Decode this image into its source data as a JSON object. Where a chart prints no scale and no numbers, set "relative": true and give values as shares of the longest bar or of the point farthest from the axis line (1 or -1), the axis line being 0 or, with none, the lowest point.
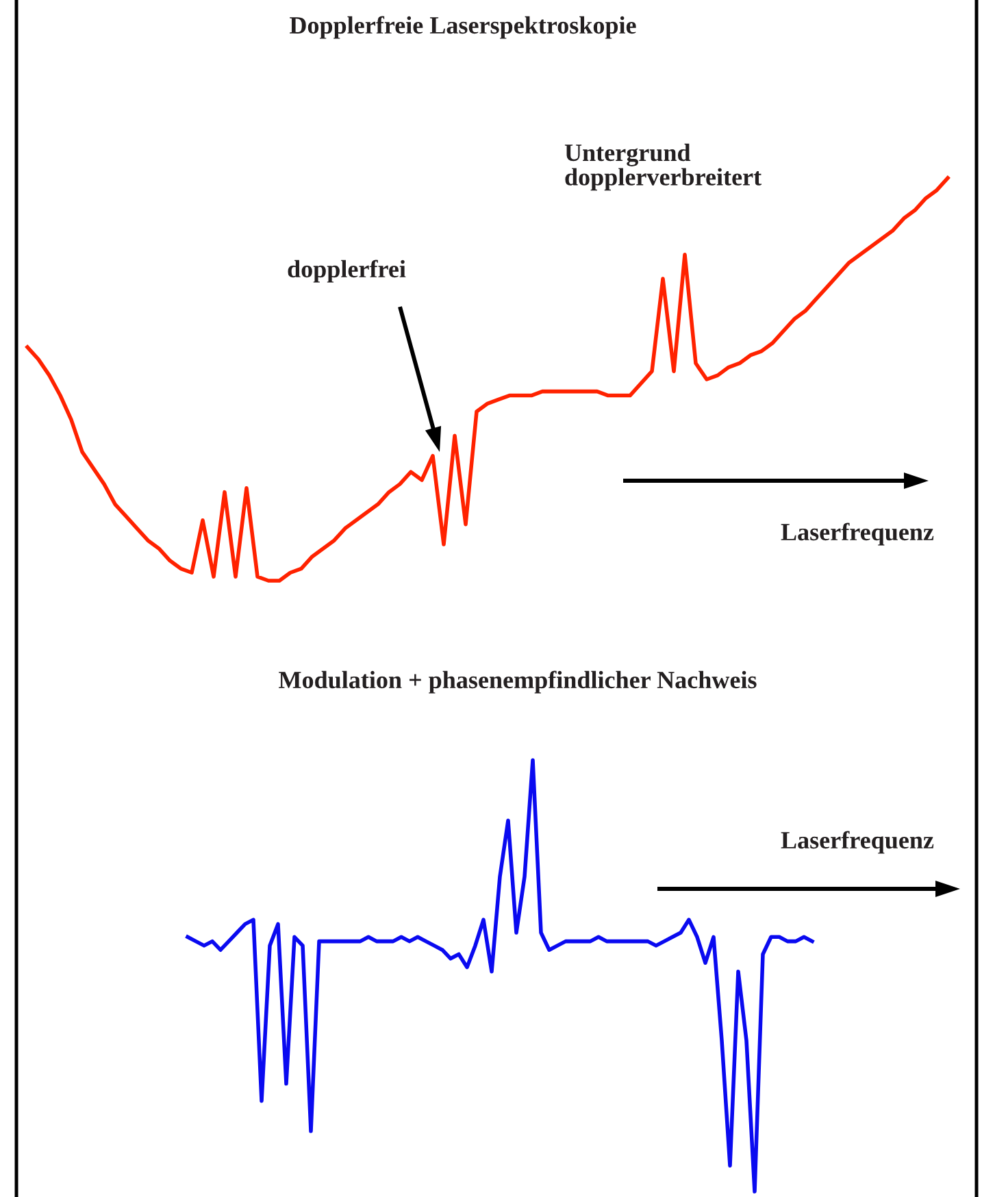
{
  "chart_data": [
    {
      "type": "line",
      "relative": true,
      "title": "Dopplerfreie Laserspektroskopie",
      "annotations": [
        "dopplerfrei",
        "Untergrund\ndopplerverbreitert",
        "Laserfrequenz"
      ],
      "categories": [
        null,
        null,
        null,
        null,
        null,
        null,
        null,
        null,
        null,
        null,
        null,
        null,
        null,
        null,
        null,
        null,
        null,
        null,
        null,
        null,
        null,
        null,
        null,
        null,
        null,
        null,
        null,
        null,
        null,
        null,
        null,
        null,
        null,
        null,
        null,
        null,
        null,
        null,
        null,
        null,
        null,
        null,
        null,
        null,
        null,
        null,
        null,
        null,
        null,
        null,
        null,
        null,
        null,
        null,
        null,
        null,
        null,
        null,
        null,
        null,
        null,
        null,
        null,
        null,
        null,
        null,
        null,
        null,
        null,
        null,
        null,
        null,
        null,
        null,
        null,
        null,
        null,
        null,
        null,
        null,
        null,
        null,
        null,
        null,
        null
      ],
      "series": [
        {
          "color": "#ff2200",
          "values": [
            0.58,
            0.55,
            0.51,
            0.46,
            0.4,
            0.32,
            0.28,
            0.24,
            0.19,
            0.16,
            0.13,
            0.1,
            0.08,
            0.05,
            0.03,
            0.02,
            0.15,
            0.01,
            0.22,
            0.01,
            0.23,
            0.01,
            0,
            0,
            0.02,
            0.03,
            0.06,
            0.08,
            0.1,
            0.13,
            0.15,
            0.17,
            0.19,
            0.22,
            0.24,
            0.27,
            0.25,
            0.31,
            0.09,
            0.36,
            0.14,
            0.42,
            0.44,
            0.45,
            0.46,
            0.46,
            0.46,
            0.47,
            0.47,
            0.47,
            0.47,
            0.47,
            0.47,
            0.46,
            0.46,
            0.46,
            0.49,
            0.52,
            0.75,
            0.52,
            0.81,
            0.54,
            0.5,
            0.51,
            0.53,
            0.54,
            0.56,
            0.57,
            0.59,
            0.62,
            0.65,
            0.67,
            0.7,
            0.73,
            0.76,
            0.79,
            0.81,
            0.83,
            0.85,
            0.87,
            0.9,
            0.92,
            0.95,
            0.97,
            1.0
          ]
        }
      ]
    },
    {
      "type": "line",
      "relative": true,
      "title": "Modulation + phasenempfindlicher Nachweis",
      "annotations": [
        "Laserfrequenz"
      ],
      "categories": [
        null,
        null,
        null,
        null,
        null,
        null,
        null,
        null,
        null,
        null,
        null,
        null,
        null,
        null,
        null,
        null,
        null,
        null,
        null,
        null,
        null,
        null,
        null,
        null,
        null,
        null,
        null,
        null,
        null,
        null,
        null,
        null,
        null,
        null,
        null,
        null,
        null,
        null,
        null,
        null,
        null,
        null,
        null,
        null,
        null,
        null,
        null,
        null,
        null,
        null,
        null,
        null,
        null,
        null,
        null,
        null,
        null,
        null,
        null,
        null,
        null,
        null,
        null,
        null,
        null,
        null,
        null,
        null,
        null,
        null,
        null,
        null,
        null,
        null,
        null,
        null,
        null
      ],
      "series": [
        {
          "color": "#0a0af0",
          "values": [
            0.59,
            0.58,
            0.57,
            0.58,
            0.56,
            0.58,
            0.6,
            0.62,
            0.63,
            0.21,
            0.57,
            0.62,
            0.25,
            0.59,
            0.57,
            0.14,
            0.58,
            0.58,
            0.58,
            0.58,
            0.58,
            0.58,
            0.59,
            0.58,
            0.58,
            0.58,
            0.59,
            0.58,
            0.59,
            0.58,
            0.57,
            0.56,
            0.54,
            0.55,
            0.52,
            0.57,
            0.63,
            0.51,
            0.73,
            0.86,
            0.6,
            0.73,
            1.0,
            0.6,
            0.56,
            0.57,
            0.58,
            0.58,
            0.58,
            0.58,
            0.59,
            0.58,
            0.58,
            0.58,
            0.58,
            0.58,
            0.58,
            0.57,
            0.58,
            0.59,
            0.6,
            0.63,
            0.59,
            0.53,
            0.59,
            0.35,
            0.06,
            0.51,
            0.35,
            0,
            0.55,
            0.59,
            0.59,
            0.58,
            0.58,
            0.59,
            0.58
          ]
        }
      ]
    }
  ]
}
